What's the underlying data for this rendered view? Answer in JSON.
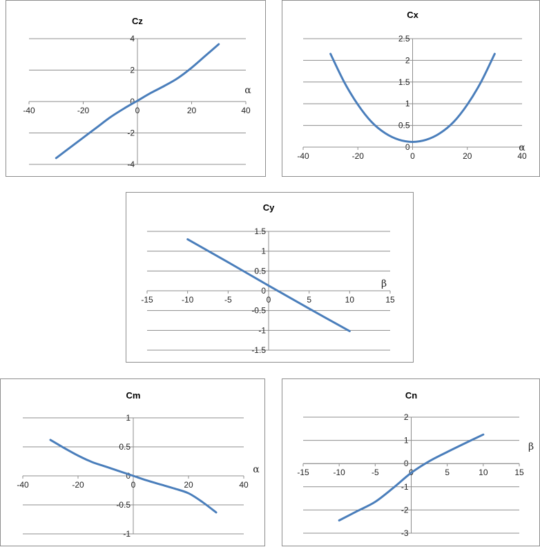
{
  "charts": [
    {
      "id": "cz",
      "chart_data": {
        "type": "line",
        "title": "Cz",
        "xlabel": "α",
        "ylabel": "",
        "xlim": [
          -40,
          40
        ],
        "ylim": [
          -4,
          4
        ],
        "xticks": [
          -40,
          -20,
          0,
          20,
          40
        ],
        "yticks": [
          -4,
          -2,
          0,
          2,
          4
        ],
        "grid": true,
        "series": [
          {
            "x": [
              -30,
              -25,
              -20,
              -15,
              -10,
              -5,
              0,
              5,
              10,
              15,
              20,
              25,
              30
            ],
            "y": [
              -3.6,
              -2.95,
              -2.3,
              -1.65,
              -1.0,
              -0.45,
              0.05,
              0.55,
              1.0,
              1.5,
              2.15,
              2.9,
              3.65
            ]
          }
        ]
      }
    },
    {
      "id": "cx",
      "chart_data": {
        "type": "line",
        "title": "Cx",
        "xlabel": "α",
        "ylabel": "",
        "xlim": [
          -40,
          40
        ],
        "ylim": [
          0,
          2.5
        ],
        "xticks": [
          -40,
          -20,
          0,
          20,
          40
        ],
        "yticks": [
          0,
          0.5,
          1,
          1.5,
          2,
          2.5
        ],
        "grid": true,
        "series": [
          {
            "x": [
              -30,
              -25,
              -20,
              -15,
              -10,
              -5,
              0,
              5,
              10,
              15,
              20,
              25,
              30
            ],
            "y": [
              2.15,
              1.5,
              0.98,
              0.58,
              0.32,
              0.17,
              0.12,
              0.17,
              0.32,
              0.58,
              0.98,
              1.5,
              2.15
            ]
          }
        ]
      }
    },
    {
      "id": "cy",
      "chart_data": {
        "type": "line",
        "title": "Cy",
        "xlabel": "β",
        "ylabel": "",
        "xlim": [
          -15,
          15
        ],
        "ylim": [
          -1.5,
          1.5
        ],
        "xticks": [
          -15,
          -10,
          -5,
          0,
          5,
          10,
          15
        ],
        "yticks": [
          -1.5,
          -1,
          -0.5,
          0,
          0.5,
          1,
          1.5
        ],
        "grid": true,
        "series": [
          {
            "x": [
              -10,
              -5,
              0,
              5,
              10
            ],
            "y": [
              1.3,
              0.72,
              0.13,
              -0.45,
              -1.02
            ]
          }
        ]
      }
    },
    {
      "id": "cm",
      "chart_data": {
        "type": "line",
        "title": "Cm",
        "xlabel": "α",
        "ylabel": "",
        "xlim": [
          -40,
          40
        ],
        "ylim": [
          -1,
          1
        ],
        "xticks": [
          -40,
          -20,
          0,
          20,
          40
        ],
        "yticks": [
          -1,
          -0.5,
          0,
          0.5,
          1
        ],
        "grid": true,
        "series": [
          {
            "x": [
              -30,
              -25,
              -20,
              -15,
              -10,
              -5,
              0,
              5,
              10,
              15,
              20,
              25,
              30
            ],
            "y": [
              0.62,
              0.48,
              0.35,
              0.24,
              0.16,
              0.08,
              0.0,
              -0.08,
              -0.15,
              -0.22,
              -0.3,
              -0.45,
              -0.63
            ]
          }
        ]
      }
    },
    {
      "id": "cn",
      "chart_data": {
        "type": "line",
        "title": "Cn",
        "xlabel": "β",
        "ylabel": "",
        "xlim": [
          -15,
          15
        ],
        "ylim": [
          -3,
          2
        ],
        "xticks": [
          -15,
          -10,
          -5,
          0,
          5,
          10,
          15
        ],
        "yticks": [
          -3,
          -2,
          -1,
          0,
          1,
          2
        ],
        "grid": true,
        "series": [
          {
            "x": [
              -10,
              -7.5,
              -5,
              -2.5,
              0,
              2.5,
              5,
              7.5,
              10
            ],
            "y": [
              -2.45,
              -2.05,
              -1.65,
              -1.05,
              -0.4,
              0.1,
              0.5,
              0.88,
              1.25
            ]
          }
        ]
      }
    }
  ],
  "style": {
    "line_color": "#4a7ebb",
    "grid_color": "#8c8c8c",
    "axis_color": "#8c8c8c"
  }
}
